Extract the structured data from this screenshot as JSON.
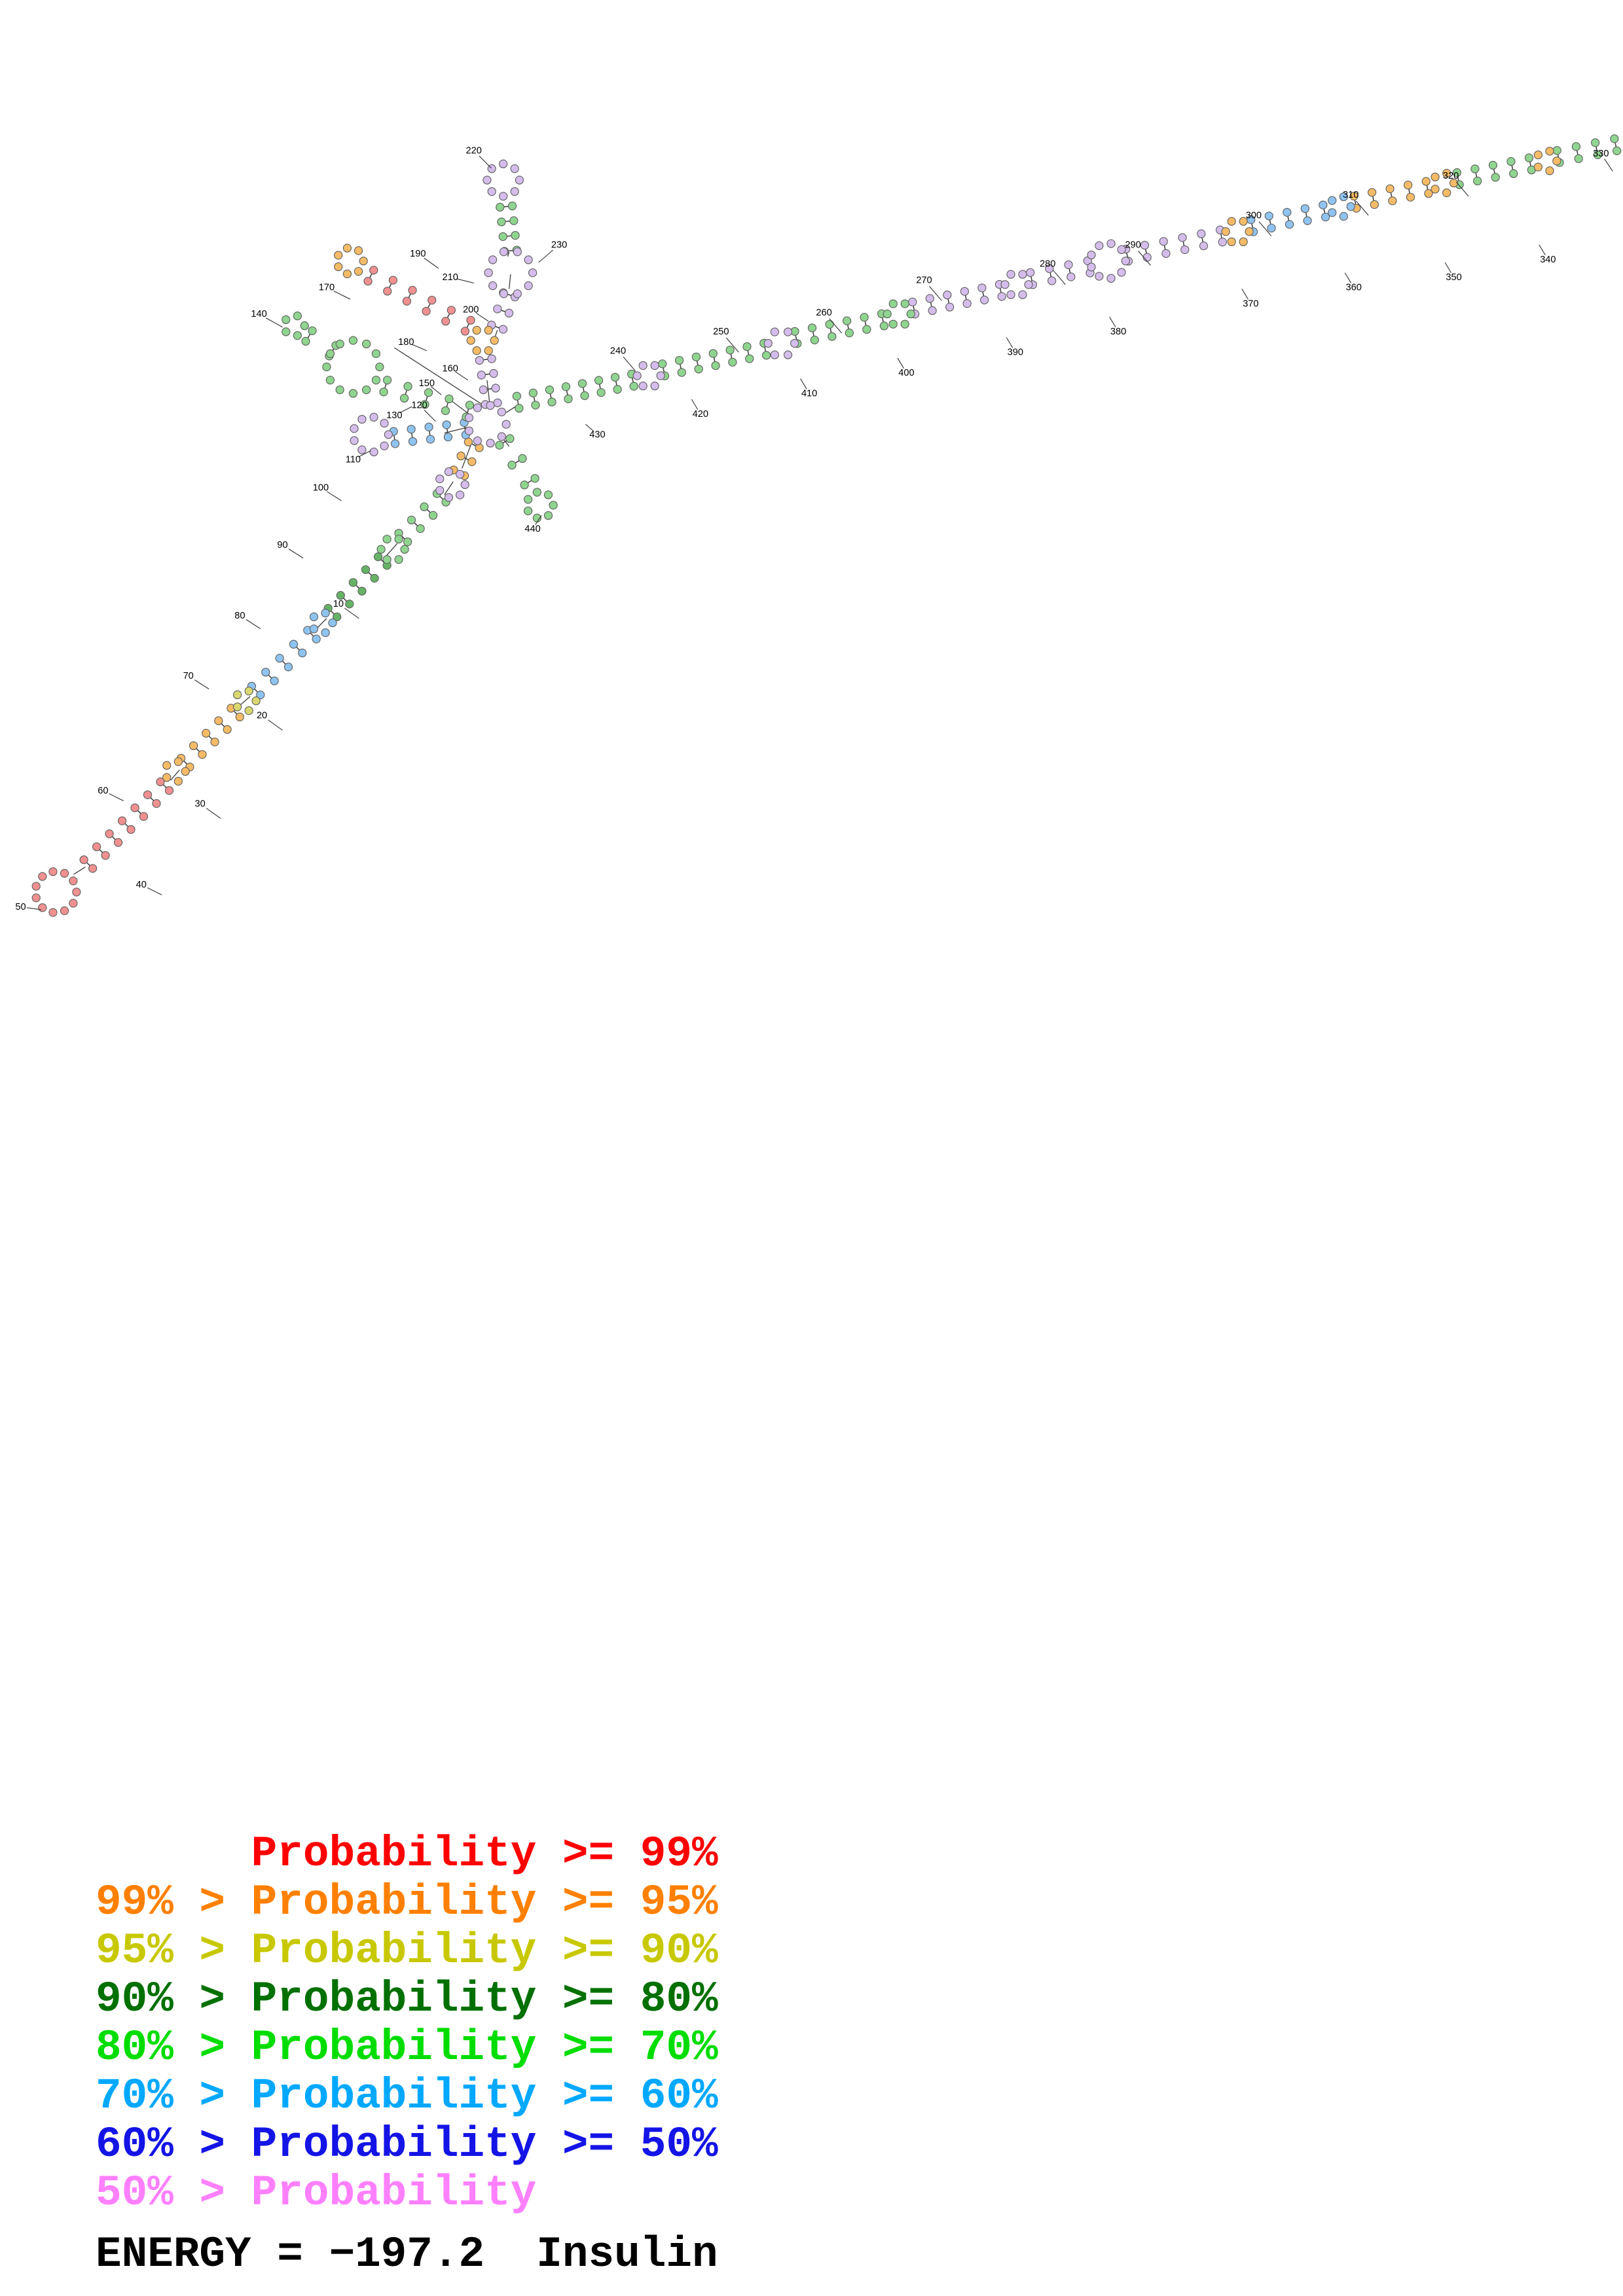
{
  "page": {
    "background": "#ffffff"
  },
  "legend": {
    "lines": [
      {
        "text": "      Probability >= 99%",
        "color": "#ff0000"
      },
      {
        "text": "99% > Probability >= 95%",
        "color": "#ff8000"
      },
      {
        "text": "95% > Probability >= 90%",
        "color": "#c8c800"
      },
      {
        "text": "90% > Probability >= 80%",
        "color": "#007000"
      },
      {
        "text": "80% > Probability >= 70%",
        "color": "#00dd00"
      },
      {
        "text": "70% > Probability >= 60%",
        "color": "#00a8ff"
      },
      {
        "text": "60% > Probability >= 50%",
        "color": "#1414e6"
      },
      {
        "text": "50% > Probability",
        "color": "#ff80ff"
      }
    ]
  },
  "footer": {
    "text": "ENERGY = −197.2  Insulin",
    "energy_value": "−197.2",
    "molecule_name": "Insulin"
  },
  "structure": {
    "palette": {
      "red": "#f09090",
      "orange": "#f5bb66",
      "olive": "#d8d870",
      "dkgreen": "#66b366",
      "green": "#8fd48f",
      "skyblue": "#8fc3f0",
      "blue": "#9090e0",
      "lav": "#d4bdeb",
      "pink": "#f0b3f0",
      "white": "#f7f7f7"
    },
    "loops": [
      [
        38,
        606,
        14,
        11,
        "red"
      ],
      [
        119,
        524,
        7,
        5,
        "orange"
      ],
      [
        167,
        476,
        7,
        5,
        "olive"
      ],
      [
        219,
        423,
        7,
        5,
        "skyblue"
      ],
      [
        267,
        373,
        8,
        6,
        "green"
      ],
      [
        307,
        329,
        9,
        7,
        "lav"
      ],
      [
        252,
        295,
        12,
        9,
        "lav"
      ],
      [
        240,
        249,
        18,
        12,
        "green"
      ],
      [
        200,
        221,
        7,
        5,
        "green"
      ],
      [
        328,
        231,
        8,
        6,
        "orange"
      ],
      [
        238,
        177,
        9,
        7,
        "orange"
      ],
      [
        347,
        185,
        15,
        10,
        "lav"
      ],
      [
        342,
        122,
        11,
        8,
        "lav"
      ],
      [
        331,
        288,
        13,
        9,
        "lav"
      ],
      [
        441,
        255,
        8,
        6,
        "lav"
      ],
      [
        531,
        233,
        9,
        6,
        "lav"
      ],
      [
        611,
        213,
        8,
        6,
        "green"
      ],
      [
        691,
        193,
        8,
        6,
        "lav"
      ],
      [
        753,
        177,
        12,
        9,
        "lav"
      ],
      [
        841,
        157,
        8,
        6,
        "orange"
      ],
      [
        911,
        140,
        7,
        5,
        "skyblue"
      ],
      [
        981,
        124,
        7,
        5,
        "orange"
      ],
      [
        1051,
        109,
        7,
        5,
        "orange"
      ],
      [
        367,
        343,
        9,
        7,
        "green"
      ]
    ],
    "helices": [
      [
        60,
        587,
        112,
        534,
        7,
        "red"
      ],
      [
        126,
        518,
        160,
        484,
        5,
        "orange"
      ],
      [
        174,
        469,
        212,
        431,
        5,
        "skyblue"
      ],
      [
        226,
        416,
        260,
        381,
        5,
        "dkgreen"
      ],
      [
        274,
        365,
        300,
        338,
        4,
        "green"
      ],
      [
        312,
        321,
        322,
        302,
        3,
        "orange"
      ],
      [
        316,
        291,
        268,
        297,
        5,
        "skyblue"
      ],
      [
        318,
        279,
        262,
        262,
        5,
        "green"
      ],
      [
        226,
        238,
        210,
        228,
        2,
        "green"
      ],
      [
        334,
        274,
        330,
        244,
        4,
        "lav"
      ],
      [
        318,
        221,
        252,
        187,
        6,
        "red"
      ],
      [
        338,
        222,
        346,
        200,
        3,
        "lav"
      ],
      [
        347,
        170,
        344,
        140,
        4,
        "green"
      ],
      [
        343,
        300,
        360,
        327,
        3,
        "green"
      ],
      [
        352,
        273,
        430,
        258,
        8,
        "green"
      ],
      [
        451,
        251,
        520,
        237,
        7,
        "green"
      ],
      [
        541,
        229,
        600,
        217,
        6,
        "green"
      ],
      [
        621,
        209,
        680,
        197,
        6,
        "lav"
      ],
      [
        701,
        189,
        740,
        181,
        4,
        "lav"
      ],
      [
        766,
        173,
        830,
        160,
        6,
        "lav"
      ],
      [
        851,
        153,
        900,
        143,
        5,
        "skyblue"
      ],
      [
        921,
        137,
        970,
        127,
        5,
        "orange"
      ],
      [
        991,
        121,
        1040,
        111,
        5,
        "green"
      ],
      [
        1059,
        106,
        1098,
        98,
        4,
        "green"
      ]
    ],
    "links": [
      [
        50,
        594,
        58,
        589
      ],
      [
        116,
        530,
        122,
        523
      ],
      [
        162,
        480,
        170,
        473
      ],
      [
        214,
        428,
        222,
        420
      ],
      [
        262,
        378,
        270,
        369
      ],
      [
        302,
        336,
        308,
        327
      ],
      [
        314,
        318,
        320,
        302
      ],
      [
        318,
        290,
        302,
        294
      ],
      [
        320,
        282,
        304,
        270
      ],
      [
        333,
        276,
        331,
        258
      ],
      [
        344,
        280,
        352,
        275
      ],
      [
        342,
        298,
        346,
        303
      ],
      [
        268,
        236,
        330,
        276
      ],
      [
        336,
        230,
        338,
        224
      ],
      [
        346,
        196,
        347,
        186
      ],
      [
        345,
        174,
        346,
        171
      ]
    ],
    "labels": [
      [
        10,
        230,
        412,
        244,
        420
      ],
      [
        20,
        178,
        488,
        192,
        496
      ],
      [
        30,
        136,
        548,
        150,
        556
      ],
      [
        40,
        96,
        603,
        110,
        608
      ],
      [
        50,
        14,
        618,
        28,
        618
      ],
      [
        60,
        70,
        539,
        84,
        544
      ],
      [
        70,
        128,
        461,
        142,
        468
      ],
      [
        80,
        163,
        420,
        177,
        427
      ],
      [
        90,
        192,
        372,
        206,
        379
      ],
      [
        100,
        218,
        333,
        232,
        340
      ],
      [
        110,
        240,
        314,
        252,
        306
      ],
      [
        120,
        285,
        277,
        296,
        286
      ],
      [
        130,
        268,
        284,
        280,
        276
      ],
      [
        140,
        176,
        215,
        192,
        222
      ],
      [
        150,
        290,
        262,
        300,
        268
      ],
      [
        160,
        306,
        252,
        318,
        258
      ],
      [
        170,
        222,
        197,
        238,
        203
      ],
      [
        180,
        276,
        234,
        290,
        238
      ],
      [
        190,
        284,
        174,
        298,
        182
      ],
      [
        200,
        320,
        212,
        332,
        218
      ],
      [
        210,
        306,
        190,
        322,
        192
      ],
      [
        220,
        322,
        104,
        334,
        114
      ],
      [
        230,
        380,
        168,
        366,
        178
      ],
      [
        240,
        420,
        240,
        432,
        252
      ],
      [
        250,
        490,
        227,
        502,
        239
      ],
      [
        260,
        560,
        214,
        572,
        226
      ],
      [
        270,
        628,
        192,
        640,
        204
      ],
      [
        280,
        712,
        181,
        724,
        193
      ],
      [
        290,
        770,
        168,
        782,
        180
      ],
      [
        300,
        852,
        148,
        864,
        160
      ],
      [
        310,
        918,
        134,
        930,
        146
      ],
      [
        320,
        986,
        121,
        998,
        133
      ],
      [
        330,
        1088,
        106,
        1096,
        116
      ],
      [
        340,
        1052,
        178,
        1046,
        166
      ],
      [
        350,
        988,
        190,
        982,
        178
      ],
      [
        360,
        920,
        197,
        914,
        185
      ],
      [
        370,
        850,
        208,
        844,
        196
      ],
      [
        380,
        760,
        227,
        754,
        215
      ],
      [
        390,
        690,
        241,
        684,
        229
      ],
      [
        400,
        616,
        255,
        610,
        243
      ],
      [
        410,
        550,
        269,
        544,
        257
      ],
      [
        420,
        476,
        283,
        470,
        271
      ],
      [
        430,
        406,
        297,
        398,
        288
      ],
      [
        440,
        362,
        361,
        368,
        350
      ]
    ]
  }
}
